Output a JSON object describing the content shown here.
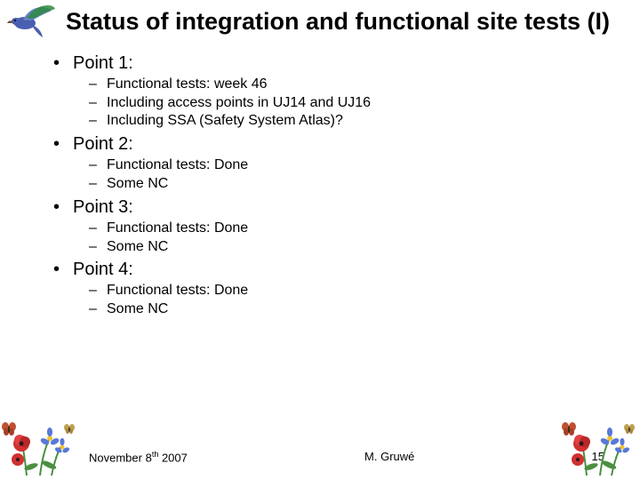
{
  "title": "Status of integration and functional site tests (I)",
  "points": [
    {
      "label": "Point 1:",
      "sub": [
        "Functional tests: week 46",
        "Including access points in UJ14 and UJ16",
        "Including SSA (Safety System Atlas)?"
      ]
    },
    {
      "label": "Point 2:",
      "sub": [
        "Functional tests: Done",
        "Some NC"
      ]
    },
    {
      "label": "Point 3:",
      "sub": [
        "Functional tests: Done",
        "Some NC"
      ]
    },
    {
      "label": "Point 4:",
      "sub": [
        "Functional tests: Done",
        "Some NC"
      ]
    }
  ],
  "footer": {
    "date_prefix": "November 8",
    "date_suffix": "th",
    "date_year": " 2007",
    "author": "M. Gruwé",
    "page": "15"
  },
  "decor": {
    "hummingbird_body": "#4a5fb0",
    "hummingbird_wing": "#2e8b3e",
    "hummingbird_beak": "#7a4a2a",
    "flower_red": "#d03030",
    "flower_blue": "#5978d8",
    "flower_yellow_center": "#f0c030",
    "leaf_green": "#4a9040",
    "butterfly1": "#c05030",
    "butterfly2": "#c0a050"
  }
}
